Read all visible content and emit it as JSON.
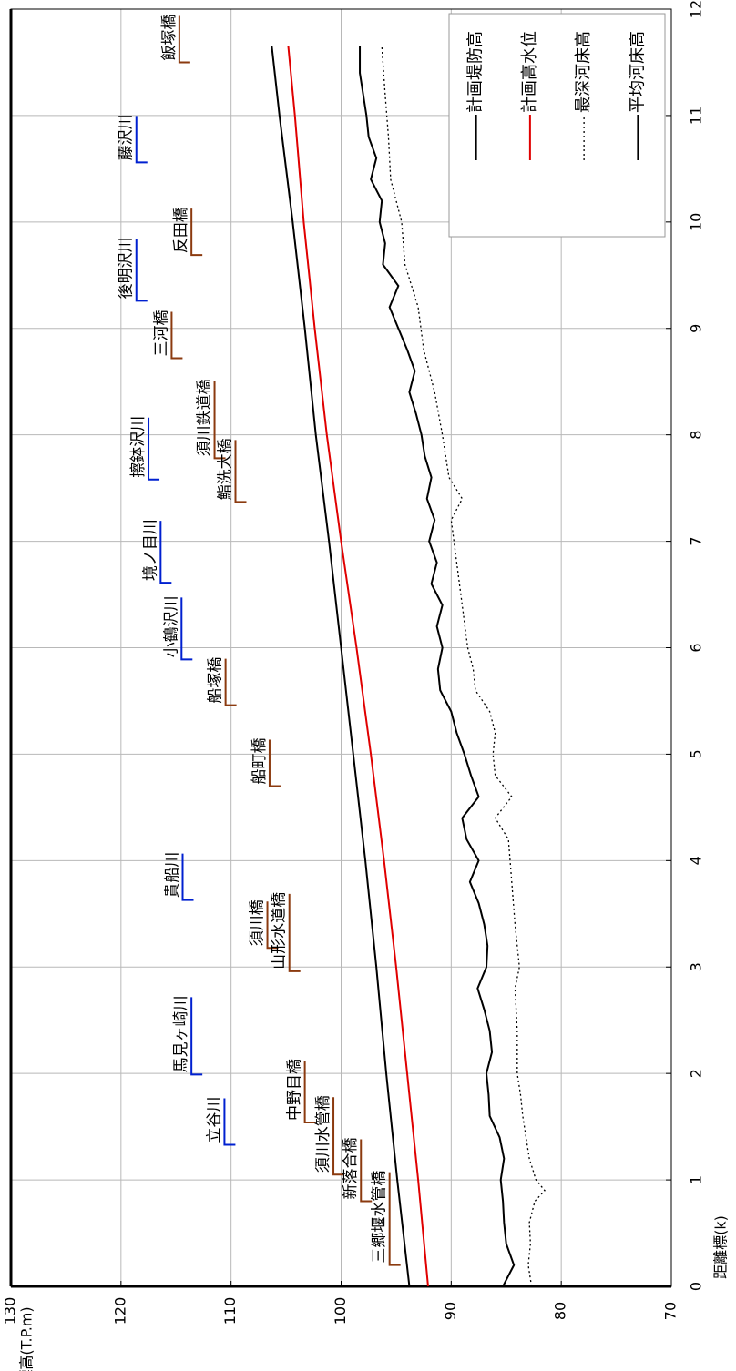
{
  "chart_data": {
    "type": "line",
    "xlabel": "距離標(k)",
    "ylabel": "標高(T.P.m)",
    "xlim": [
      0,
      12
    ],
    "xticks": [
      0,
      1,
      2,
      3,
      4,
      5,
      6,
      7,
      8,
      9,
      10,
      11,
      12
    ],
    "ylim": [
      70,
      130
    ],
    "yticks": [
      70,
      80,
      90,
      100,
      110,
      120,
      130
    ],
    "grid": true,
    "legend_position": "upper right",
    "series": [
      {
        "name": "計画堤防高",
        "color": "#000000",
        "line_style": "solid",
        "x": [
          0,
          1,
          2,
          3,
          4,
          5,
          6,
          7,
          8,
          9,
          10,
          11,
          11.65
        ],
        "values": [
          93.8,
          94.9,
          95.9,
          96.8,
          97.8,
          98.9,
          100.0,
          101.1,
          102.3,
          103.3,
          104.4,
          105.6,
          106.3
        ]
      },
      {
        "name": "計画高水位",
        "color": "#e00000",
        "line_style": "solid",
        "x": [
          0,
          1,
          2,
          3,
          4,
          5,
          6,
          7,
          8,
          9,
          10,
          11,
          11.65
        ],
        "values": [
          92.1,
          93.0,
          94.0,
          95.0,
          96.1,
          97.3,
          98.6,
          100.0,
          101.3,
          102.4,
          103.4,
          104.2,
          104.8
        ]
      },
      {
        "name": "最深河床高",
        "color": "#000000",
        "line_style": "dotted",
        "x": [
          0,
          0.2,
          0.4,
          0.6,
          0.8,
          0.9,
          1.0,
          1.2,
          1.4,
          1.6,
          1.8,
          2.0,
          2.4,
          2.8,
          3.0,
          3.4,
          3.8,
          4.2,
          4.4,
          4.6,
          4.8,
          5.0,
          5.2,
          5.4,
          5.6,
          5.8,
          6.0,
          6.4,
          6.8,
          7.2,
          7.4,
          7.6,
          8.0,
          8.4,
          8.8,
          9.2,
          9.6,
          10.0,
          10.4,
          10.8,
          11.2,
          11.65
        ],
        "values": [
          82.7,
          83.0,
          82.8,
          82.9,
          82.4,
          81.5,
          82.3,
          82.9,
          83.2,
          83.5,
          83.7,
          84.0,
          84.0,
          84.2,
          83.8,
          84.2,
          84.5,
          84.8,
          86.0,
          84.5,
          86.0,
          86.2,
          86.0,
          86.5,
          87.8,
          88.0,
          88.5,
          89.0,
          89.5,
          90.0,
          89.0,
          90.2,
          90.8,
          91.5,
          92.5,
          93.0,
          94.2,
          94.5,
          95.5,
          95.7,
          96.0,
          96.3
        ]
      },
      {
        "name": "平均河床高",
        "color": "#000000",
        "line_style": "solid",
        "x": [
          0,
          0.2,
          0.4,
          0.6,
          0.8,
          1.0,
          1.2,
          1.4,
          1.6,
          1.8,
          2.0,
          2.2,
          2.4,
          2.6,
          2.8,
          3.0,
          3.2,
          3.4,
          3.6,
          3.8,
          4.0,
          4.2,
          4.4,
          4.6,
          4.8,
          5.0,
          5.2,
          5.4,
          5.6,
          5.8,
          6.0,
          6.2,
          6.4,
          6.6,
          6.8,
          7.0,
          7.2,
          7.4,
          7.6,
          7.8,
          8.0,
          8.2,
          8.4,
          8.6,
          8.8,
          9.0,
          9.2,
          9.4,
          9.6,
          9.8,
          10.0,
          10.2,
          10.4,
          10.6,
          10.8,
          11.0,
          11.2,
          11.4,
          11.65
        ],
        "values": [
          85.3,
          84.3,
          85.0,
          85.2,
          85.3,
          85.5,
          85.2,
          85.6,
          86.5,
          86.6,
          86.8,
          86.3,
          86.5,
          87.0,
          87.6,
          86.8,
          86.7,
          87.0,
          87.5,
          88.3,
          87.5,
          88.6,
          89.0,
          87.5,
          88.2,
          88.8,
          89.5,
          90.0,
          91.0,
          91.2,
          90.8,
          91.3,
          90.8,
          91.8,
          91.3,
          92.0,
          91.5,
          92.2,
          91.8,
          92.4,
          92.7,
          93.2,
          93.8,
          93.3,
          94.0,
          94.8,
          95.6,
          94.8,
          96.2,
          96.0,
          96.5,
          96.3,
          97.3,
          96.8,
          97.5,
          97.7,
          98.0,
          98.3,
          98.3
        ]
      }
    ],
    "annotations": [
      {
        "text": "飯塚橋",
        "km": 11.5,
        "elev": 114.7,
        "color": "#8b3a0f"
      },
      {
        "text": "藤沢川",
        "km": 10.56,
        "elev": 118.6,
        "color": "#0020d0"
      },
      {
        "text": "反田橋",
        "km": 9.69,
        "elev": 113.6,
        "color": "#8b3a0f"
      },
      {
        "text": "後明沢川",
        "km": 9.26,
        "elev": 118.6,
        "color": "#0020d0"
      },
      {
        "text": "三河橋",
        "km": 8.72,
        "elev": 115.4,
        "color": "#8b3a0f"
      },
      {
        "text": "須川鉄道橋",
        "km": 7.78,
        "elev": 111.5,
        "color": "#8b3a0f"
      },
      {
        "text": "擦鉢沢川",
        "km": 7.58,
        "elev": 117.5,
        "color": "#0020d0"
      },
      {
        "text": "鮨洗大橋",
        "km": 7.37,
        "elev": 109.6,
        "color": "#8b3a0f"
      },
      {
        "text": "境ノ目川",
        "km": 6.61,
        "elev": 116.4,
        "color": "#0020d0"
      },
      {
        "text": "小鶴沢川",
        "km": 5.89,
        "elev": 114.5,
        "color": "#0020d0"
      },
      {
        "text": "船塚橋",
        "km": 5.46,
        "elev": 110.5,
        "color": "#8b3a0f"
      },
      {
        "text": "船町橋",
        "km": 4.7,
        "elev": 106.5,
        "color": "#8b3a0f"
      },
      {
        "text": "貴船川",
        "km": 3.63,
        "elev": 114.4,
        "color": "#0020d0"
      },
      {
        "text": "須川橋",
        "km": 3.18,
        "elev": 106.7,
        "color": "#8b3a0f"
      },
      {
        "text": "山形水道橋",
        "km": 2.96,
        "elev": 104.7,
        "color": "#8b3a0f"
      },
      {
        "text": "馬見ヶ崎川",
        "km": 1.99,
        "elev": 113.6,
        "color": "#0020d0"
      },
      {
        "text": "立谷川",
        "km": 1.33,
        "elev": 110.6,
        "color": "#0020d0"
      },
      {
        "text": "中野目橋",
        "km": 1.54,
        "elev": 103.3,
        "color": "#8b3a0f"
      },
      {
        "text": "須川水管橋",
        "km": 1.05,
        "elev": 100.7,
        "color": "#8b3a0f"
      },
      {
        "text": "新落合橋",
        "km": 0.8,
        "elev": 98.2,
        "color": "#8b3a0f"
      },
      {
        "text": "三郷堰水管橋",
        "km": 0.2,
        "elev": 95.6,
        "color": "#8b3a0f"
      }
    ]
  }
}
